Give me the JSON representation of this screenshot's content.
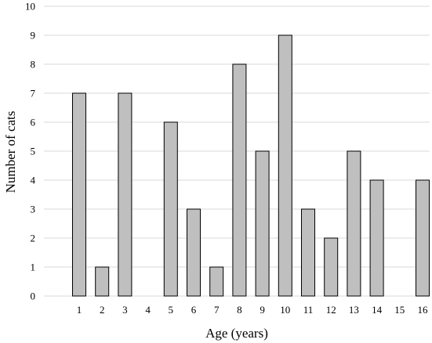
{
  "chart_data": {
    "type": "bar",
    "categories": [
      "1",
      "2",
      "3",
      "4",
      "5",
      "6",
      "7",
      "8",
      "9",
      "10",
      "11",
      "12",
      "13",
      "14",
      "15",
      "16"
    ],
    "values": [
      7,
      1,
      7,
      0,
      6,
      3,
      1,
      8,
      5,
      9,
      3,
      2,
      5,
      4,
      0,
      4
    ],
    "xlabel": "Age (years)",
    "ylabel": "Number of cats",
    "ylim": [
      0,
      10
    ],
    "yticks": [
      0,
      1,
      2,
      3,
      4,
      5,
      6,
      7,
      8,
      9,
      10
    ],
    "grid": true,
    "legend": false,
    "colors": {
      "bar_fill": "#bfbfbf",
      "bar_stroke": "#000000",
      "grid": "#d9d9d9"
    }
  }
}
